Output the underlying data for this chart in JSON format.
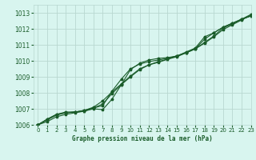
{
  "background_color": "#d8f5ef",
  "grid_color": "#b8d8d0",
  "line_color": "#1a5c2a",
  "title": "Graphe pression niveau de la mer (hPa)",
  "xlim": [
    -0.5,
    23
  ],
  "ylim": [
    1006,
    1013.5
  ],
  "xticks": [
    0,
    1,
    2,
    3,
    4,
    5,
    6,
    7,
    8,
    9,
    10,
    11,
    12,
    13,
    14,
    15,
    16,
    17,
    18,
    19,
    20,
    21,
    22,
    23
  ],
  "yticks": [
    1006,
    1007,
    1008,
    1009,
    1010,
    1011,
    1012,
    1013
  ],
  "series": [
    [
      1006.0,
      1006.3,
      1006.6,
      1006.75,
      1006.8,
      1006.85,
      1007.05,
      1007.2,
      1008.1,
      1008.85,
      1009.5,
      1009.8,
      1009.95,
      1010.05,
      1010.15,
      1010.3,
      1010.5,
      1010.75,
      1011.1,
      1011.5,
      1011.95,
      1012.25,
      1012.55,
      1012.85
    ],
    [
      1006.0,
      1006.35,
      1006.65,
      1006.8,
      1006.8,
      1006.9,
      1007.05,
      1007.3,
      1007.95,
      1008.5,
      1009.0,
      1009.45,
      1009.75,
      1009.9,
      1010.1,
      1010.3,
      1010.5,
      1010.75,
      1011.15,
      1011.55,
      1012.05,
      1012.3,
      1012.6,
      1012.9
    ],
    [
      1006.0,
      1006.35,
      1006.65,
      1006.75,
      1006.8,
      1006.9,
      1007.1,
      1007.5,
      1008.05,
      1008.55,
      1009.05,
      1009.5,
      1009.75,
      1009.95,
      1010.1,
      1010.25,
      1010.5,
      1010.75,
      1011.35,
      1011.75,
      1012.1,
      1012.35,
      1012.6,
      1012.8
    ],
    [
      1006.0,
      1006.2,
      1006.5,
      1006.65,
      1006.75,
      1006.85,
      1007.0,
      1006.95,
      1007.6,
      1008.5,
      1009.45,
      1009.85,
      1010.05,
      1010.15,
      1010.2,
      1010.3,
      1010.55,
      1010.8,
      1011.5,
      1011.75,
      1012.1,
      1012.35,
      1012.6,
      1012.8
    ]
  ]
}
